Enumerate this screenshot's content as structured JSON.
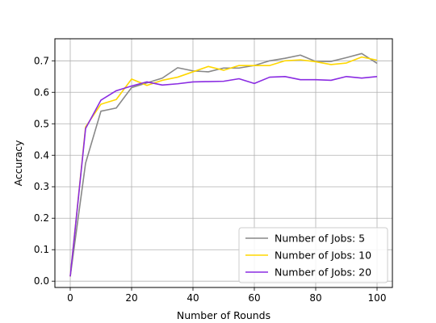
{
  "chart_data": {
    "type": "line",
    "title": "",
    "xlabel": "Number of Rounds",
    "ylabel": "Accuracy",
    "xlim": [
      -5,
      105
    ],
    "ylim": [
      -0.02,
      0.77
    ],
    "xticks": [
      0,
      20,
      40,
      60,
      80,
      100
    ],
    "yticks": [
      0.0,
      0.1,
      0.2,
      0.3,
      0.4,
      0.5,
      0.6,
      0.7
    ],
    "grid": true,
    "legend_position": "lower-right",
    "x": [
      0,
      5,
      10,
      15,
      20,
      25,
      30,
      35,
      40,
      45,
      50,
      55,
      60,
      65,
      70,
      75,
      80,
      85,
      90,
      95,
      100
    ],
    "series": [
      {
        "name": "Number of Jobs: 5",
        "color": "#888888",
        "values": [
          0.015,
          0.375,
          0.54,
          0.55,
          0.615,
          0.63,
          0.645,
          0.678,
          0.668,
          0.665,
          0.677,
          0.677,
          0.685,
          0.7,
          0.708,
          0.718,
          0.698,
          0.698,
          0.71,
          0.723,
          0.692
        ]
      },
      {
        "name": "Number of Jobs: 10",
        "color": "#ffd700",
        "values": [
          0.015,
          0.49,
          0.562,
          0.577,
          0.642,
          0.622,
          0.638,
          0.648,
          0.665,
          0.682,
          0.67,
          0.685,
          0.685,
          0.685,
          0.7,
          0.703,
          0.697,
          0.688,
          0.693,
          0.712,
          0.702
        ]
      },
      {
        "name": "Number of Jobs: 20",
        "color": "#8a2be2",
        "values": [
          0.015,
          0.485,
          0.575,
          0.605,
          0.62,
          0.633,
          0.623,
          0.627,
          0.633,
          0.634,
          0.635,
          0.643,
          0.628,
          0.648,
          0.65,
          0.64,
          0.64,
          0.638,
          0.65,
          0.645,
          0.65
        ]
      }
    ]
  }
}
